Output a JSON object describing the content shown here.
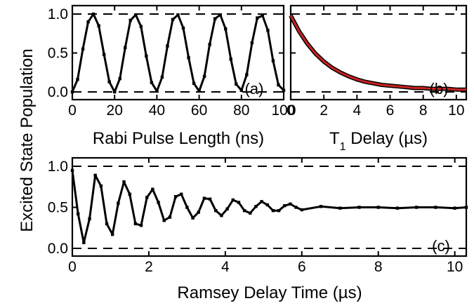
{
  "ylabel": "Excited State Population",
  "chart_data": [
    {
      "type": "line",
      "panel_label": "(a)",
      "xlabel": "Rabi Pulse Length (ns)",
      "xlim": [
        0,
        100
      ],
      "ylim": [
        0,
        1
      ],
      "x_ticks": [
        "0",
        "20",
        "40",
        "60",
        "80",
        "100"
      ],
      "y_ticks": [
        "0.0",
        "0.5",
        "1.0"
      ],
      "reference_lines": [
        0,
        1
      ],
      "series": [
        {
          "x": [
            0,
            2.5,
            5,
            7.5,
            10,
            12.5,
            15,
            17.5,
            20,
            22.5,
            25,
            27.5,
            30,
            32.5,
            35,
            37.5,
            40,
            42.5,
            45,
            47.5,
            50,
            52.5,
            55,
            57.5,
            60,
            62.5,
            65,
            67.5,
            70,
            72.5,
            75,
            77.5,
            80,
            82.5,
            85,
            87.5,
            90,
            92.5,
            95,
            97.5,
            100
          ],
          "y": [
            0.0,
            0.16,
            0.55,
            0.9,
            1.0,
            0.85,
            0.48,
            0.13,
            0.0,
            0.17,
            0.57,
            0.92,
            0.99,
            0.84,
            0.46,
            0.12,
            0.01,
            0.19,
            0.59,
            0.93,
            0.99,
            0.82,
            0.44,
            0.11,
            0.01,
            0.2,
            0.61,
            0.94,
            0.99,
            0.81,
            0.42,
            0.1,
            0.02,
            0.22,
            0.63,
            0.95,
            0.98,
            0.79,
            0.4,
            0.09,
            0.02
          ],
          "color": "#000000"
        }
      ]
    },
    {
      "type": "line",
      "panel_label": "(b)",
      "xlabel": "T1 Delay (µs)",
      "xlim": [
        0,
        10.6
      ],
      "ylim": [
        0,
        1
      ],
      "x_ticks": [
        "0",
        "2",
        "4",
        "6",
        "8",
        "10"
      ],
      "y_ticks": [],
      "reference_lines": [
        0,
        1
      ],
      "series": [
        {
          "x": [
            0,
            0.25,
            0.5,
            0.75,
            1,
            1.5,
            2,
            2.5,
            3,
            3.5,
            4,
            4.5,
            5,
            5.5,
            6,
            6.5,
            7,
            7.5,
            8,
            8.5,
            9,
            9.5,
            10,
            10.6
          ],
          "y": [
            0.98,
            0.88,
            0.78,
            0.7,
            0.62,
            0.49,
            0.39,
            0.31,
            0.25,
            0.2,
            0.16,
            0.13,
            0.11,
            0.09,
            0.08,
            0.07,
            0.06,
            0.05,
            0.05,
            0.04,
            0.04,
            0.04,
            0.03,
            0.03
          ],
          "color": "#cc2222"
        }
      ]
    },
    {
      "type": "line",
      "panel_label": "(c)",
      "xlabel": "Ramsey Delay Time (µs)",
      "xlim": [
        0,
        10.3
      ],
      "ylim": [
        0,
        1
      ],
      "x_ticks": [
        "0",
        "2",
        "4",
        "6",
        "8",
        "10"
      ],
      "y_ticks": [
        "0.0",
        "0.5",
        "1.0"
      ],
      "reference_lines": [
        0,
        1
      ],
      "series": [
        {
          "x": [
            0,
            0.15,
            0.3,
            0.45,
            0.6,
            0.75,
            0.9,
            1.05,
            1.2,
            1.35,
            1.5,
            1.65,
            1.8,
            1.95,
            2.1,
            2.25,
            2.4,
            2.55,
            2.7,
            2.85,
            3.0,
            3.15,
            3.3,
            3.45,
            3.6,
            3.75,
            3.9,
            4.05,
            4.2,
            4.35,
            4.5,
            4.65,
            4.8,
            4.95,
            5.1,
            5.25,
            5.4,
            5.55,
            5.7,
            5.85,
            6.0,
            6.5,
            7,
            7.5,
            8,
            8.5,
            9,
            9.5,
            10,
            10.3
          ],
          "y": [
            0.95,
            0.42,
            0.07,
            0.36,
            0.89,
            0.76,
            0.3,
            0.17,
            0.55,
            0.81,
            0.66,
            0.3,
            0.28,
            0.62,
            0.72,
            0.56,
            0.34,
            0.38,
            0.63,
            0.66,
            0.5,
            0.37,
            0.44,
            0.61,
            0.6,
            0.46,
            0.4,
            0.48,
            0.59,
            0.56,
            0.46,
            0.43,
            0.51,
            0.57,
            0.53,
            0.46,
            0.46,
            0.52,
            0.54,
            0.5,
            0.47,
            0.51,
            0.49,
            0.5,
            0.5,
            0.49,
            0.5,
            0.5,
            0.49,
            0.5
          ],
          "color": "#000000"
        }
      ]
    }
  ]
}
